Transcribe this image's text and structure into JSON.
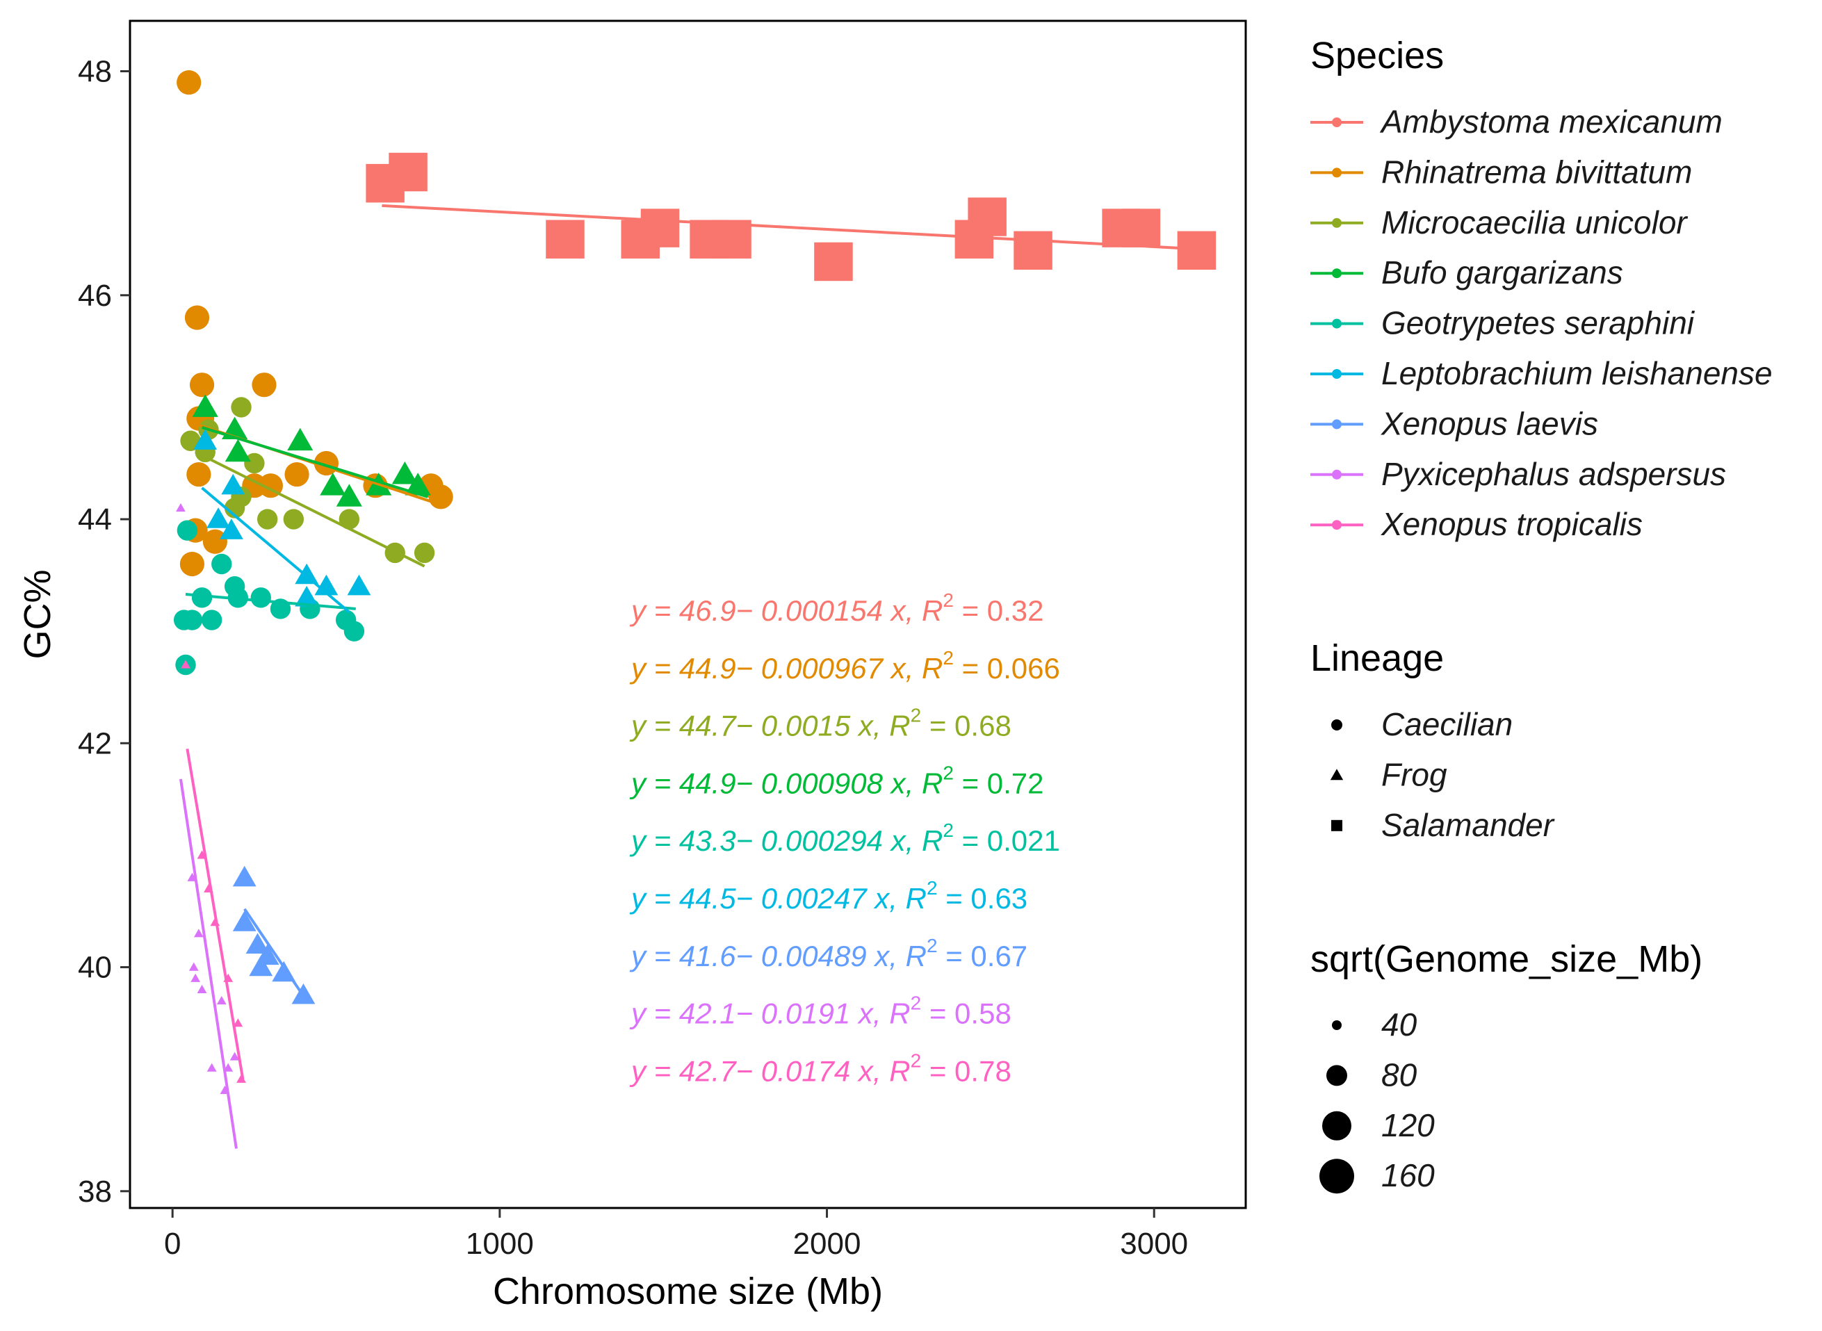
{
  "chart_data": {
    "type": "scatter",
    "xlabel": "Chromosome size (Mb)",
    "ylabel": "GC%",
    "xlim": [
      -130,
      3280
    ],
    "ylim": [
      37.85,
      48.45
    ],
    "xticks": [
      0,
      1000,
      2000,
      3000
    ],
    "yticks": [
      38,
      40,
      42,
      44,
      46,
      48
    ],
    "legend": {
      "species_title": "Species",
      "lineage_title": "Lineage",
      "lineage": [
        {
          "label": "Caecilian",
          "shape": "circle"
        },
        {
          "label": "Frog",
          "shape": "triangle"
        },
        {
          "label": "Salamander",
          "shape": "square"
        }
      ],
      "size_title": "sqrt(Genome_size_Mb)",
      "size_labels": [
        "40",
        "80",
        "120",
        "160"
      ]
    },
    "series": [
      {
        "name": "Ambystoma mexicanum",
        "color": "#F8766D",
        "shape": "square",
        "size_value": 170,
        "equation": "y = 46.9− 0.000154 x, R",
        "r2": "0.32",
        "line": [
          [
            640,
            46.8
          ],
          [
            3150,
            46.41
          ]
        ],
        "points": [
          [
            650,
            47.0
          ],
          [
            720,
            47.1
          ],
          [
            1200,
            46.5
          ],
          [
            1430,
            46.5
          ],
          [
            1490,
            46.6
          ],
          [
            1640,
            46.5
          ],
          [
            1710,
            46.5
          ],
          [
            2020,
            46.3
          ],
          [
            2450,
            46.5
          ],
          [
            2490,
            46.7
          ],
          [
            2630,
            46.4
          ],
          [
            2900,
            46.6
          ],
          [
            2960,
            46.6
          ],
          [
            3130,
            46.4
          ]
        ]
      },
      {
        "name": "Rhinatrema bivittatum",
        "color": "#E18A00",
        "shape": "circle",
        "size_value": 100,
        "equation": "y = 44.9− 0.000967 x, R",
        "r2": "0.066",
        "line": [
          [
            60,
            44.86
          ],
          [
            830,
            44.12
          ]
        ],
        "points": [
          [
            50,
            47.9
          ],
          [
            75,
            45.8
          ],
          [
            90,
            45.2
          ],
          [
            280,
            45.2
          ],
          [
            80,
            44.9
          ],
          [
            90,
            44.9
          ],
          [
            80,
            44.4
          ],
          [
            470,
            44.5
          ],
          [
            380,
            44.4
          ],
          [
            300,
            44.3
          ],
          [
            250,
            44.3
          ],
          [
            620,
            44.3
          ],
          [
            790,
            44.3
          ],
          [
            820,
            44.2
          ],
          [
            70,
            43.9
          ],
          [
            130,
            43.8
          ],
          [
            60,
            43.6
          ]
        ]
      },
      {
        "name": "Microcaecilia unicolor",
        "color": "#8EAB22",
        "shape": "circle",
        "size_value": 80,
        "equation": "y = 44.7− 0.0015 x, R",
        "r2": "0.68",
        "line": [
          [
            70,
            44.6
          ],
          [
            770,
            43.58
          ]
        ],
        "points": [
          [
            55,
            44.7
          ],
          [
            100,
            44.6
          ],
          [
            210,
            45.0
          ],
          [
            110,
            44.8
          ],
          [
            250,
            44.5
          ],
          [
            210,
            44.2
          ],
          [
            190,
            44.1
          ],
          [
            290,
            44.0
          ],
          [
            370,
            44.0
          ],
          [
            540,
            44.0
          ],
          [
            680,
            43.7
          ],
          [
            770,
            43.7
          ]
        ]
      },
      {
        "name": "Bufo gargarizans",
        "color": "#00BA38",
        "shape": "triangle",
        "size_value": 90,
        "equation": "y = 44.9− 0.000908 x, R",
        "r2": "0.72",
        "line": [
          [
            90,
            44.82
          ],
          [
            780,
            44.2
          ]
        ],
        "points": [
          [
            100,
            45.0
          ],
          [
            190,
            44.8
          ],
          [
            200,
            44.6
          ],
          [
            390,
            44.7
          ],
          [
            490,
            44.3
          ],
          [
            540,
            44.2
          ],
          [
            630,
            44.3
          ],
          [
            710,
            44.4
          ],
          [
            750,
            44.3
          ]
        ]
      },
      {
        "name": "Geotrypetes seraphini",
        "color": "#00C19F",
        "shape": "circle",
        "size_value": 80,
        "equation": "y = 43.3− 0.000294 x, R",
        "r2": "0.021",
        "line": [
          [
            40,
            43.33
          ],
          [
            560,
            43.2
          ]
        ],
        "points": [
          [
            35,
            43.1
          ],
          [
            60,
            43.1
          ],
          [
            90,
            43.3
          ],
          [
            120,
            43.1
          ],
          [
            150,
            43.6
          ],
          [
            190,
            43.4
          ],
          [
            200,
            43.3
          ],
          [
            270,
            43.3
          ],
          [
            330,
            43.2
          ],
          [
            420,
            43.2
          ],
          [
            530,
            43.1
          ],
          [
            555,
            43.0
          ],
          [
            45,
            43.9
          ],
          [
            40,
            42.7
          ]
        ]
      },
      {
        "name": "Leptobrachium leishanense",
        "color": "#00B9E3",
        "shape": "triangle",
        "size_value": 80,
        "equation": "y = 44.5− 0.00247 x, R",
        "r2": "0.63",
        "line": [
          [
            90,
            44.28
          ],
          [
            540,
            43.17
          ]
        ],
        "points": [
          [
            100,
            44.7
          ],
          [
            185,
            44.3
          ],
          [
            140,
            44.0
          ],
          [
            180,
            43.9
          ],
          [
            410,
            43.5
          ],
          [
            470,
            43.4
          ],
          [
            570,
            43.4
          ],
          [
            410,
            43.3
          ]
        ]
      },
      {
        "name": "Xenopus laevis",
        "color": "#619CFF",
        "shape": "triangle",
        "size_value": 80,
        "equation": "y = 41.6− 0.00489 x, R",
        "r2": "0.67",
        "line": [
          [
            220,
            40.52
          ],
          [
            410,
            39.7
          ]
        ],
        "points": [
          [
            220,
            40.8
          ],
          [
            220,
            40.4
          ],
          [
            260,
            40.2
          ],
          [
            290,
            40.1
          ],
          [
            270,
            40.0
          ],
          [
            340,
            39.95
          ],
          [
            400,
            39.75
          ]
        ]
      },
      {
        "name": "Pyxicephalus adspersus",
        "color": "#DB72FB",
        "shape": "triangle",
        "size_value": 20,
        "equation": "y = 42.1− 0.0191 x, R",
        "r2": "0.58",
        "line": [
          [
            25,
            41.68
          ],
          [
            195,
            38.38
          ]
        ],
        "points": [
          [
            25,
            44.1
          ],
          [
            60,
            40.8
          ],
          [
            65,
            40.0
          ],
          [
            80,
            40.3
          ],
          [
            70,
            39.9
          ],
          [
            90,
            39.8
          ],
          [
            150,
            39.7
          ],
          [
            120,
            39.1
          ],
          [
            160,
            38.9
          ],
          [
            170,
            39.1
          ],
          [
            190,
            39.2
          ]
        ]
      },
      {
        "name": "Xenopus tropicalis",
        "color": "#FF61C3",
        "shape": "triangle",
        "size_value": 20,
        "equation": "y = 42.7− 0.0174 x, R",
        "r2": "0.78",
        "line": [
          [
            45,
            41.95
          ],
          [
            215,
            39.0
          ]
        ],
        "points": [
          [
            90,
            41.0
          ],
          [
            110,
            40.7
          ],
          [
            130,
            40.4
          ],
          [
            170,
            39.9
          ],
          [
            200,
            39.5
          ],
          [
            210,
            39.0
          ],
          [
            40,
            42.7
          ]
        ]
      }
    ]
  }
}
